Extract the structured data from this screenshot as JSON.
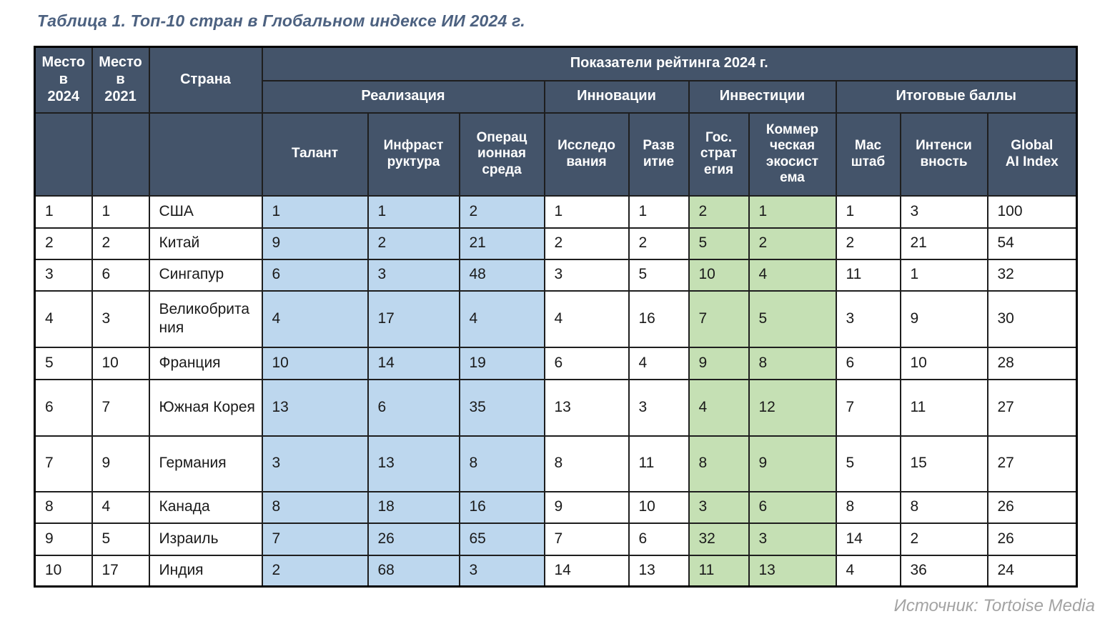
{
  "title": "Таблица 1. Топ-10 стран в Глобальном индексе ИИ 2024 г.",
  "source": "Источник: Tortoise Media",
  "colors": {
    "header_bg": "#44546A",
    "header_text": "#FFFFFF",
    "realization_cell_bg": "#BDD7EE",
    "investment_cell_bg": "#C5E0B4",
    "title_text": "#4C6180",
    "source_text": "#A3A3A3",
    "body_text": "#1A1A1A",
    "border": "#1E1E1E"
  },
  "table": {
    "header": {
      "rank2024": "Место\nв\n2024",
      "rank2021": "Место\nв\n2021",
      "country": "Страна",
      "indicators": "Показатели рейтинга 2024 г.",
      "groups": [
        {
          "label": "Реализация",
          "colspan": 3
        },
        {
          "label": "Инновации",
          "colspan": 2
        },
        {
          "label": "Инвестиции",
          "colspan": 2
        },
        {
          "label": "Итоговые баллы",
          "colspan": 3
        }
      ],
      "subcolumns": [
        {
          "label": "Талант",
          "highlight": "blue"
        },
        {
          "label": "Инфраст\nруктура",
          "highlight": "blue"
        },
        {
          "label": "Операц\nионная\nсреда",
          "highlight": "blue"
        },
        {
          "label": "Исследо\nвания",
          "highlight": "none"
        },
        {
          "label": "Разв\nитие",
          "highlight": "none"
        },
        {
          "label": "Гос.\nстрат\nегия",
          "highlight": "green"
        },
        {
          "label": "Коммер\nческая\nэкосист\nема",
          "highlight": "green"
        },
        {
          "label": "Мас\nштаб",
          "highlight": "none"
        },
        {
          "label": "Интенси\nвность",
          "highlight": "none"
        },
        {
          "label": "Global\nAI Index",
          "highlight": "none"
        }
      ]
    },
    "rows": [
      {
        "rank2024": "1",
        "rank2021": "1",
        "country": "США",
        "values": [
          "1",
          "1",
          "2",
          "1",
          "1",
          "2",
          "1",
          "1",
          "3",
          "100"
        ]
      },
      {
        "rank2024": "2",
        "rank2021": "2",
        "country": "Китай",
        "values": [
          "9",
          "2",
          "21",
          "2",
          "2",
          "5",
          "2",
          "2",
          "21",
          "54"
        ]
      },
      {
        "rank2024": "3",
        "rank2021": "6",
        "country": "Сингапур",
        "values": [
          "6",
          "3",
          "48",
          "3",
          "5",
          "10",
          "4",
          "11",
          "1",
          "32"
        ]
      },
      {
        "rank2024": "4",
        "rank2021": "3",
        "country": "Великобритания",
        "values": [
          "4",
          "17",
          "4",
          "4",
          "16",
          "7",
          "5",
          "3",
          "9",
          "30"
        ]
      },
      {
        "rank2024": "5",
        "rank2021": "10",
        "country": "Франция",
        "values": [
          "10",
          "14",
          "19",
          "6",
          "4",
          "9",
          "8",
          "6",
          "10",
          "28"
        ]
      },
      {
        "rank2024": "6",
        "rank2021": "7",
        "country": "Южная Корея",
        "values": [
          "13",
          "6",
          "35",
          "13",
          "3",
          "4",
          "12",
          "7",
          "11",
          "27"
        ]
      },
      {
        "rank2024": "7",
        "rank2021": "9",
        "country": "Германия",
        "values": [
          "3",
          "13",
          "8",
          "8",
          "11",
          "8",
          "9",
          "5",
          "15",
          "27"
        ]
      },
      {
        "rank2024": "8",
        "rank2021": "4",
        "country": "Канада",
        "values": [
          "8",
          "18",
          "16",
          "9",
          "10",
          "3",
          "6",
          "8",
          "8",
          "26"
        ]
      },
      {
        "rank2024": "9",
        "rank2021": "5",
        "country": "Израиль",
        "values": [
          "7",
          "26",
          "65",
          "7",
          "6",
          "32",
          "3",
          "14",
          "2",
          "26"
        ]
      },
      {
        "rank2024": "10",
        "rank2021": "17",
        "country": "Индия",
        "values": [
          "2",
          "68",
          "3",
          "14",
          "13",
          "11",
          "13",
          "4",
          "36",
          "24"
        ]
      }
    ]
  }
}
